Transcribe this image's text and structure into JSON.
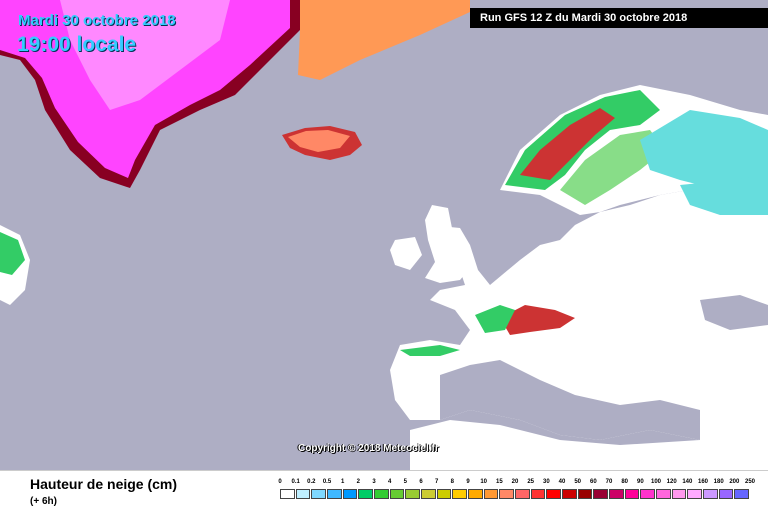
{
  "header": {
    "date_line": "Mardi 30 octobre 2018",
    "time_line": "19:00 locale",
    "run_label": "Run GFS 12 Z du Mardi 30 octobre 2018"
  },
  "map": {
    "copyright": "Copyright © 2018 Meteociel.fr",
    "colors": {
      "sea": "#aeaec4",
      "land": "#ffffff",
      "ice_pink": "#ff44ff",
      "ice_magenta": "#ff00cc",
      "orange": "#ff9955",
      "green": "#33cc66",
      "light_green": "#88dd88",
      "red_brown": "#cc3333",
      "cyan": "#66dddd"
    }
  },
  "legend": {
    "title": "Hauteur de neige (cm)",
    "subtitle": "(+ 6h)",
    "levels": [
      "0",
      "0.1",
      "0.2",
      "0.5",
      "1",
      "2",
      "3",
      "4",
      "5",
      "6",
      "7",
      "8",
      "9",
      "10",
      "15",
      "20",
      "25",
      "30",
      "40",
      "50",
      "60",
      "70",
      "80",
      "90",
      "100",
      "120",
      "140",
      "160",
      "180",
      "200",
      "250"
    ],
    "colors": [
      "#ffffff",
      "#bfefff",
      "#7fd8ff",
      "#3fb8ff",
      "#0099ff",
      "#00cc66",
      "#33cc33",
      "#66cc33",
      "#99cc33",
      "#cccc33",
      "#cccc00",
      "#ffcc00",
      "#ffaa00",
      "#ff9933",
      "#ff8866",
      "#ff6666",
      "#ff3333",
      "#ff0000",
      "#cc0000",
      "#990000",
      "#990033",
      "#cc0066",
      "#ff0099",
      "#ff33cc",
      "#ff66dd",
      "#ff99ee",
      "#ffaaff",
      "#cc99ff",
      "#9966ff",
      "#6666ff"
    ]
  }
}
